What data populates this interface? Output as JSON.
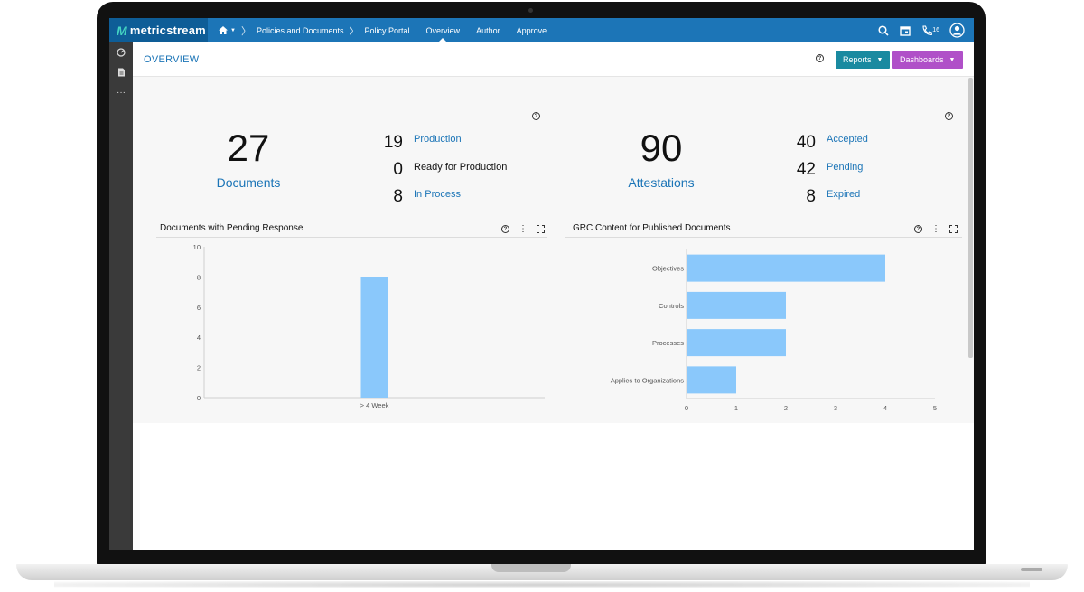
{
  "app": {
    "brand": "metricstream"
  },
  "nav": {
    "breadcrumbs": [
      "Policies and Documents",
      "Policy Portal"
    ],
    "tabs": [
      {
        "label": "Overview",
        "active": true
      },
      {
        "label": "Author",
        "active": false
      },
      {
        "label": "Approve",
        "active": false
      }
    ],
    "notification_count": "16"
  },
  "header": {
    "title": "OVERVIEW",
    "reports_label": "Reports",
    "dashboards_label": "Dashboards"
  },
  "documents_summary": {
    "total": "27",
    "label": "Documents",
    "stats": [
      {
        "value": "19",
        "label": "Production"
      },
      {
        "value": "0",
        "label": "Ready for Production"
      },
      {
        "value": "8",
        "label": "In Process"
      }
    ]
  },
  "attestations_summary": {
    "total": "90",
    "label": "Attestations",
    "stats": [
      {
        "value": "40",
        "label": "Accepted"
      },
      {
        "value": "42",
        "label": "Pending"
      },
      {
        "value": "8",
        "label": "Expired"
      }
    ]
  },
  "panels": {
    "pending_title": "Documents with Pending Response",
    "grc_title": "GRC Content for Published Documents"
  },
  "colors": {
    "accent": "#1c75b7",
    "reports": "#1a8aa0",
    "dashboards": "#b050c8",
    "bar": "#8ac8fb"
  },
  "chart_data": [
    {
      "type": "bar",
      "title": "Documents with Pending Response",
      "categories": [
        "> 4 Week"
      ],
      "values": [
        8
      ],
      "ylim": [
        0,
        10
      ],
      "yticks": [
        0,
        2,
        4,
        6,
        8,
        10
      ],
      "xlabel": "",
      "ylabel": ""
    },
    {
      "type": "bar",
      "orientation": "horizontal",
      "title": "GRC Content for Published Documents",
      "categories": [
        "Objectives",
        "Controls",
        "Processes",
        "Applies to Organizations"
      ],
      "values": [
        4,
        2,
        2,
        1
      ],
      "xlim": [
        0,
        5
      ],
      "xticks": [
        0,
        1,
        2,
        3,
        4,
        5
      ],
      "xlabel": "",
      "ylabel": ""
    }
  ]
}
